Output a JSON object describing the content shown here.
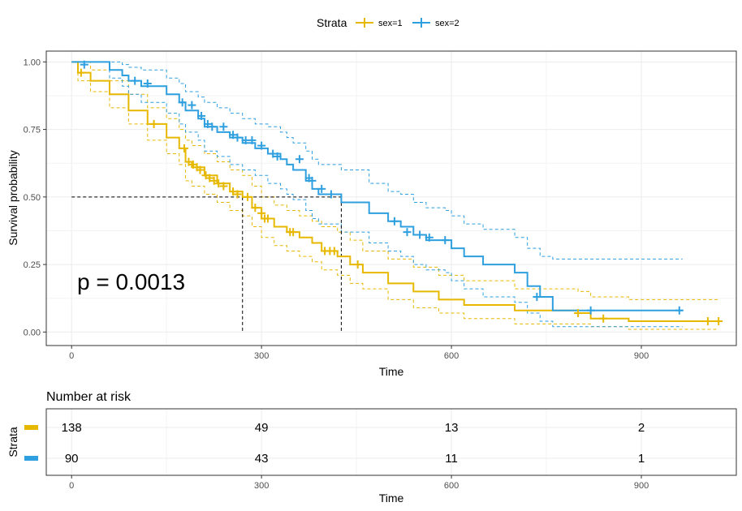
{
  "chart_data": [
    {
      "type": "line",
      "subtype": "kaplan-meier",
      "title": "",
      "xlabel": "Time",
      "ylabel": "Survival probability",
      "xlim": [
        -40,
        1050
      ],
      "ylim": [
        -0.05,
        1.04
      ],
      "xticks": [
        "0",
        "300",
        "600",
        "900"
      ],
      "xtick_values": [
        0,
        300,
        600,
        900
      ],
      "yticks": [
        "0.00",
        "0.25",
        "0.50",
        "0.75",
        "1.00"
      ],
      "ytick_values": [
        0,
        0.25,
        0.5,
        0.75,
        1.0
      ],
      "grid": true,
      "legend": {
        "title": "Strata",
        "placement": "top",
        "entries": [
          "sex=1",
          "sex=2"
        ]
      },
      "annotation": "p = 0.0013",
      "median_lines": [
        {
          "time": 270,
          "survival": 0.5
        },
        {
          "time": 426,
          "survival": 0.5
        }
      ],
      "series": [
        {
          "name": "sex=1",
          "color": "#E7B800",
          "x": [
            0,
            10,
            30,
            60,
            90,
            120,
            150,
            170,
            180,
            190,
            210,
            230,
            250,
            270,
            285,
            300,
            320,
            340,
            360,
            380,
            395,
            420,
            440,
            460,
            500,
            540,
            580,
            620,
            700,
            800,
            820,
            880,
            1022
          ],
          "y": [
            1.0,
            0.96,
            0.93,
            0.88,
            0.82,
            0.77,
            0.72,
            0.68,
            0.63,
            0.61,
            0.58,
            0.55,
            0.52,
            0.5,
            0.46,
            0.42,
            0.39,
            0.37,
            0.35,
            0.33,
            0.3,
            0.28,
            0.25,
            0.22,
            0.18,
            0.15,
            0.12,
            0.1,
            0.08,
            0.07,
            0.05,
            0.04,
            0.04
          ],
          "upper": [
            1.0,
            1.0,
            0.97,
            0.93,
            0.88,
            0.83,
            0.79,
            0.75,
            0.71,
            0.69,
            0.66,
            0.63,
            0.6,
            0.58,
            0.54,
            0.5,
            0.47,
            0.45,
            0.43,
            0.41,
            0.39,
            0.37,
            0.34,
            0.3,
            0.27,
            0.24,
            0.21,
            0.19,
            0.16,
            0.15,
            0.13,
            0.12,
            0.12
          ],
          "lower": [
            1.0,
            0.93,
            0.89,
            0.83,
            0.77,
            0.71,
            0.66,
            0.62,
            0.56,
            0.54,
            0.51,
            0.48,
            0.45,
            0.43,
            0.39,
            0.35,
            0.32,
            0.3,
            0.28,
            0.26,
            0.23,
            0.21,
            0.18,
            0.16,
            0.12,
            0.09,
            0.07,
            0.05,
            0.03,
            0.03,
            0.02,
            0.01,
            0.01
          ],
          "censored": [
            [
              15,
              0.96
            ],
            [
              130,
              0.77
            ],
            [
              178,
              0.68
            ],
            [
              185,
              0.63
            ],
            [
              192,
              0.62
            ],
            [
              198,
              0.61
            ],
            [
              203,
              0.6
            ],
            [
              212,
              0.58
            ],
            [
              218,
              0.57
            ],
            [
              225,
              0.56
            ],
            [
              232,
              0.55
            ],
            [
              240,
              0.54
            ],
            [
              255,
              0.52
            ],
            [
              262,
              0.51
            ],
            [
              278,
              0.5
            ],
            [
              290,
              0.46
            ],
            [
              300,
              0.44
            ],
            [
              305,
              0.42
            ],
            [
              310,
              0.42
            ],
            [
              345,
              0.37
            ],
            [
              350,
              0.37
            ],
            [
              400,
              0.3
            ],
            [
              408,
              0.3
            ],
            [
              415,
              0.3
            ],
            [
              452,
              0.25
            ],
            [
              800,
              0.07
            ],
            [
              840,
              0.05
            ],
            [
              1005,
              0.04
            ],
            [
              1022,
              0.04
            ]
          ]
        },
        {
          "name": "sex=2",
          "color": "#2E9FDF",
          "x": [
            0,
            60,
            80,
            90,
            110,
            150,
            170,
            180,
            200,
            210,
            230,
            250,
            270,
            290,
            310,
            330,
            340,
            350,
            370,
            380,
            390,
            426,
            470,
            500,
            520,
            540,
            560,
            590,
            600,
            620,
            650,
            700,
            720,
            740,
            760,
            965
          ],
          "y": [
            1.0,
            0.97,
            0.95,
            0.93,
            0.91,
            0.88,
            0.85,
            0.82,
            0.79,
            0.76,
            0.74,
            0.72,
            0.7,
            0.68,
            0.66,
            0.64,
            0.62,
            0.6,
            0.56,
            0.53,
            0.51,
            0.48,
            0.44,
            0.41,
            0.39,
            0.36,
            0.34,
            0.34,
            0.31,
            0.28,
            0.25,
            0.22,
            0.17,
            0.13,
            0.08,
            0.08
          ],
          "upper": [
            1.0,
            1.0,
            0.99,
            0.98,
            0.97,
            0.94,
            0.92,
            0.89,
            0.87,
            0.85,
            0.83,
            0.81,
            0.79,
            0.77,
            0.76,
            0.74,
            0.72,
            0.7,
            0.67,
            0.64,
            0.62,
            0.6,
            0.55,
            0.52,
            0.51,
            0.48,
            0.46,
            0.45,
            0.43,
            0.4,
            0.38,
            0.35,
            0.31,
            0.28,
            0.27,
            0.27
          ],
          "lower": [
            1.0,
            0.94,
            0.91,
            0.88,
            0.85,
            0.81,
            0.77,
            0.74,
            0.71,
            0.67,
            0.65,
            0.62,
            0.6,
            0.58,
            0.55,
            0.53,
            0.51,
            0.49,
            0.45,
            0.42,
            0.4,
            0.37,
            0.33,
            0.3,
            0.28,
            0.25,
            0.23,
            0.22,
            0.19,
            0.16,
            0.13,
            0.11,
            0.07,
            0.04,
            0.02,
            0.02
          ],
          "censored": [
            [
              20,
              0.99
            ],
            [
              100,
              0.93
            ],
            [
              120,
              0.92
            ],
            [
              175,
              0.85
            ],
            [
              190,
              0.84
            ],
            [
              205,
              0.8
            ],
            [
              215,
              0.77
            ],
            [
              222,
              0.76
            ],
            [
              240,
              0.76
            ],
            [
              255,
              0.73
            ],
            [
              262,
              0.72
            ],
            [
              275,
              0.71
            ],
            [
              285,
              0.71
            ],
            [
              300,
              0.69
            ],
            [
              318,
              0.66
            ],
            [
              325,
              0.65
            ],
            [
              360,
              0.64
            ],
            [
              375,
              0.57
            ],
            [
              380,
              0.56
            ],
            [
              395,
              0.53
            ],
            [
              410,
              0.51
            ],
            [
              510,
              0.41
            ],
            [
              530,
              0.37
            ],
            [
              550,
              0.36
            ],
            [
              565,
              0.35
            ],
            [
              590,
              0.34
            ],
            [
              735,
              0.13
            ],
            [
              820,
              0.08
            ],
            [
              960,
              0.08
            ]
          ]
        }
      ]
    },
    {
      "type": "table",
      "title": "Number at risk",
      "ylabel": "Strata",
      "xlabel": "Time",
      "xticks": [
        "0",
        "300",
        "600",
        "900"
      ],
      "xtick_values": [
        0,
        300,
        600,
        900
      ],
      "rows": [
        {
          "strata": "sex=1",
          "color": "#E7B800",
          "values": [
            138,
            49,
            13,
            2
          ]
        },
        {
          "strata": "sex=2",
          "color": "#2E9FDF",
          "values": [
            90,
            43,
            11,
            1
          ]
        }
      ]
    }
  ]
}
